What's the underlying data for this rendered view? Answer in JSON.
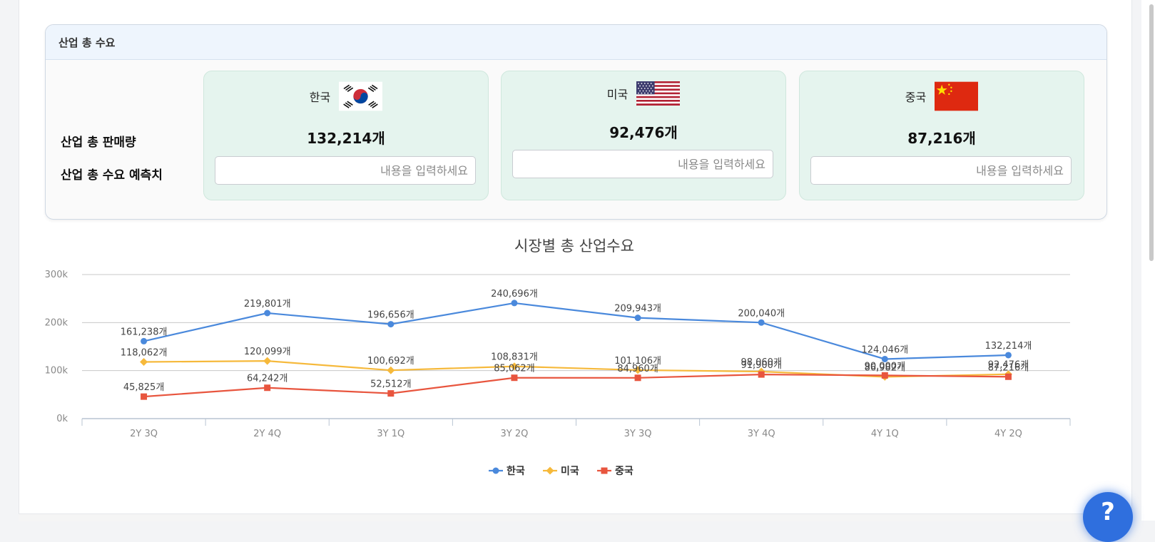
{
  "panel": {
    "title": "산업 총 수요",
    "row_labels": {
      "sales": "산업 총 판매량",
      "forecast": "산업 총 수요 예측치"
    },
    "cards": [
      {
        "country": "한국",
        "flag_icon": "korea-flag-icon",
        "value": "132,214개",
        "placeholder": "내용을 입력하세요"
      },
      {
        "country": "미국",
        "flag_icon": "usa-flag-icon",
        "value": "92,476개",
        "placeholder": "내용을 입력하세요"
      },
      {
        "country": "중국",
        "flag_icon": "china-flag-icon",
        "value": "87,216개",
        "placeholder": "내용을 입력하세요"
      }
    ]
  },
  "help_button": {
    "label": "?"
  },
  "chart_data": {
    "type": "line",
    "title": "시장별 총 산업수요",
    "categories": [
      "2Y 3Q",
      "2Y 4Q",
      "3Y 1Q",
      "3Y 2Q",
      "3Y 3Q",
      "3Y 4Q",
      "4Y 1Q",
      "4Y 2Q"
    ],
    "ylim": [
      0,
      300000
    ],
    "yticks": [
      0,
      100000,
      200000,
      300000
    ],
    "ytick_labels": [
      "0k",
      "100k",
      "200k",
      "300k"
    ],
    "value_suffix": "개",
    "grid": true,
    "legend": "bottom-center",
    "series": [
      {
        "name": "한국",
        "color": "#4a89dc",
        "marker": "circle",
        "values": [
          161238,
          219801,
          196656,
          240696,
          209943,
          200040,
          124046,
          132214
        ]
      },
      {
        "name": "미국",
        "color": "#f6b93b",
        "marker": "diamond",
        "values": [
          118062,
          120099,
          100692,
          108831,
          101106,
          98060,
          86982,
          92476
        ]
      },
      {
        "name": "중국",
        "color": "#e8553e",
        "marker": "square",
        "values": [
          45825,
          64242,
          52512,
          85062,
          84960,
          91900,
          90000,
          87216
        ]
      }
    ]
  }
}
